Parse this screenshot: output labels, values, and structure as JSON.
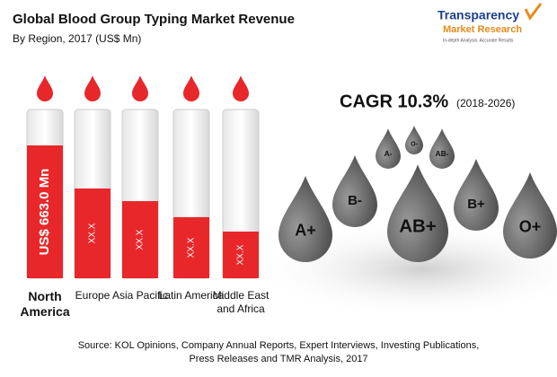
{
  "chart_data": {
    "type": "tube",
    "title": "Global Blood Group Typing Market Revenue",
    "subtitle": "By Region, 2017 (US$ Mn)",
    "categories": [
      "North America",
      "Europe",
      "Asia Pacific",
      "Latin America",
      "Middle East and Africa"
    ],
    "values": [
      663.0,
      448,
      385,
      305,
      233
    ],
    "value_labels": [
      "US$ 663.0 Mn",
      "XX.X",
      "XX.X",
      "XX.X",
      "XX.X"
    ],
    "color": "#e8272a",
    "cagr": "CAGR 10.3%",
    "cagr_period": "(2018-2026)",
    "drops": [
      "A+",
      "B-",
      "AB+",
      "B+",
      "O+",
      "A-",
      "O-",
      "AB-"
    ],
    "source": "Source: KOL Opinions, Company Annual Reports, Expert Interviews, Investing Publications, Press Releases and TMR Analysis, 2017"
  },
  "logo": {
    "name": "Transparency",
    "sub": "Market Research",
    "tagline": "In-depth Analysis. Accurate Results"
  }
}
